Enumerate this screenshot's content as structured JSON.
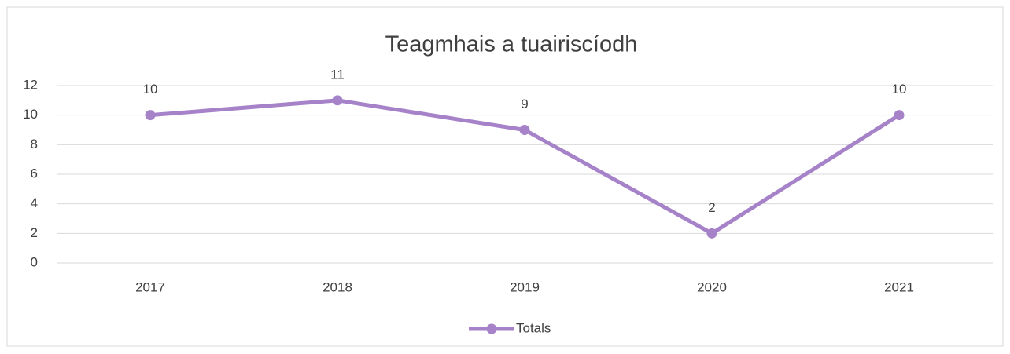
{
  "chart_data": {
    "type": "line",
    "title": "Teagmhais a tuairiscíodh",
    "categories": [
      "2017",
      "2018",
      "2019",
      "2020",
      "2021"
    ],
    "series": [
      {
        "name": "Totals",
        "color": "#a683c9",
        "values": [
          10,
          11,
          9,
          2,
          10
        ]
      }
    ],
    "ylim": [
      0,
      12
    ],
    "yticks": [
      0,
      2,
      4,
      6,
      8,
      10,
      12
    ],
    "grid": true,
    "legend": "bottom"
  }
}
